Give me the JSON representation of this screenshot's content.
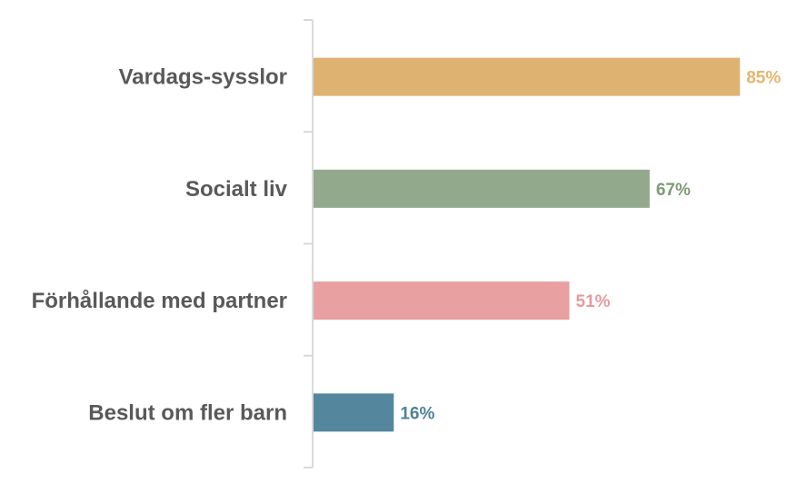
{
  "chart_data": {
    "type": "bar",
    "orientation": "horizontal",
    "categories": [
      "Vardags-sysslor",
      "Socialt liv",
      "Förhållande med partner",
      "Beslut om fler barn"
    ],
    "values": [
      85,
      67,
      51,
      16
    ],
    "data_labels": [
      "85%",
      "67%",
      "51%",
      "16%"
    ],
    "colors": [
      "#DEB270",
      "#92A98C",
      "#E8A0A0",
      "#54879E"
    ],
    "label_colors": [
      "#E6B56E",
      "#7E9A77",
      "#E89A9A",
      "#4E8299"
    ],
    "category_label_color": "#595959",
    "axis_color": "#D9D9D9",
    "xlim": [
      0,
      85
    ],
    "grid": false,
    "legend": "none"
  }
}
